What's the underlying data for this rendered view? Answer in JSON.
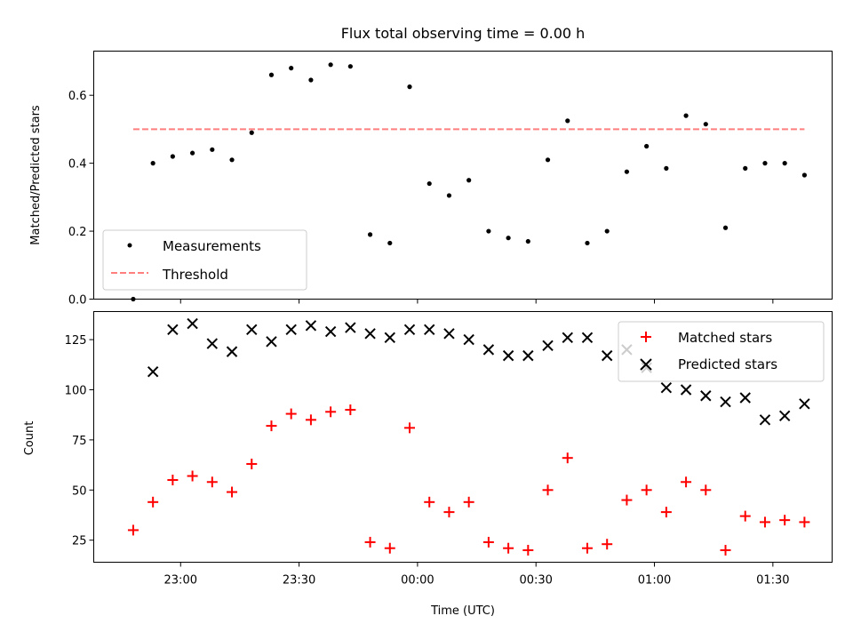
{
  "chart_data": [
    {
      "type": "scatter",
      "title": "Flux total observing time = 0.00 h",
      "ylabel": "Matched/Predicted stars",
      "ylim": [
        0,
        0.73
      ],
      "yticks": [
        0.0,
        0.2,
        0.4,
        0.6
      ],
      "ytick_labels": [
        "0.0",
        "0.2",
        "0.4",
        "0.6"
      ],
      "xlim": [
        "22:38",
        "01:45"
      ],
      "xticks": [
        "23:00",
        "23:30",
        "00:00",
        "00:30",
        "01:00",
        "01:30"
      ],
      "show_xtick_labels": false,
      "legend_position": "lower-left",
      "series": [
        {
          "name": "Measurements",
          "marker": "dot",
          "color": "#000000",
          "x": [
            "22:48",
            "22:53",
            "22:58",
            "23:03",
            "23:08",
            "23:13",
            "23:18",
            "23:23",
            "23:28",
            "23:33",
            "23:38",
            "23:43",
            "23:48",
            "23:53",
            "23:58",
            "00:03",
            "00:08",
            "00:13",
            "00:18",
            "00:23",
            "00:28",
            "00:33",
            "00:38",
            "00:43",
            "00:48",
            "00:53",
            "00:58",
            "01:03",
            "01:08",
            "01:13",
            "01:18",
            "01:23",
            "01:28",
            "01:33",
            "01:38"
          ],
          "values": [
            0.0,
            0.4,
            0.42,
            0.43,
            0.44,
            0.41,
            0.49,
            0.66,
            0.68,
            0.645,
            0.69,
            0.685,
            0.19,
            0.165,
            0.625,
            0.34,
            0.305,
            0.35,
            0.2,
            0.18,
            0.17,
            0.41,
            0.525,
            0.165,
            0.2,
            0.375,
            0.45,
            0.385,
            0.54,
            0.515,
            0.21,
            0.385,
            0.4,
            0.4,
            0.365
          ]
        },
        {
          "name": "Threshold",
          "style": "dashed",
          "color": "#ff7f7f",
          "x": [
            "22:48",
            "01:38"
          ],
          "values": [
            0.5,
            0.5
          ]
        }
      ]
    },
    {
      "type": "scatter",
      "ylabel": "Count",
      "xlabel": "Time (UTC)",
      "ylim": [
        14,
        139
      ],
      "yticks": [
        25,
        50,
        75,
        100,
        125
      ],
      "ytick_labels": [
        "25",
        "50",
        "75",
        "100",
        "125"
      ],
      "xlim": [
        "22:38",
        "01:45"
      ],
      "xticks": [
        "23:00",
        "23:30",
        "00:00",
        "00:30",
        "01:00",
        "01:30"
      ],
      "xtick_labels": [
        "23:00",
        "23:30",
        "00:00",
        "00:30",
        "01:00",
        "01:30"
      ],
      "legend_position": "top-right",
      "series": [
        {
          "name": "Matched stars",
          "marker": "+",
          "color": "#ff0000",
          "x": [
            "22:48",
            "22:53",
            "22:58",
            "23:03",
            "23:08",
            "23:13",
            "23:18",
            "23:23",
            "23:28",
            "23:33",
            "23:38",
            "23:43",
            "23:48",
            "23:53",
            "23:58",
            "00:03",
            "00:08",
            "00:13",
            "00:18",
            "00:23",
            "00:28",
            "00:33",
            "00:38",
            "00:43",
            "00:48",
            "00:53",
            "00:58",
            "01:03",
            "01:08",
            "01:13",
            "01:18",
            "01:23",
            "01:28",
            "01:33",
            "01:38"
          ],
          "values": [
            30,
            44,
            55,
            57,
            54,
            49,
            63,
            82,
            88,
            85,
            89,
            90,
            24,
            21,
            81,
            44,
            39,
            44,
            24,
            21,
            20,
            50,
            66,
            21,
            23,
            45,
            50,
            39,
            54,
            50,
            20,
            37,
            34,
            35,
            34
          ]
        },
        {
          "name": "Predicted stars",
          "marker": "x",
          "color": "#000000",
          "x": [
            "22:53",
            "22:58",
            "23:03",
            "23:08",
            "23:13",
            "23:18",
            "23:23",
            "23:28",
            "23:33",
            "23:38",
            "23:43",
            "23:48",
            "23:53",
            "23:58",
            "00:03",
            "00:08",
            "00:13",
            "00:18",
            "00:23",
            "00:28",
            "00:33",
            "00:38",
            "00:43",
            "00:48",
            "00:53",
            "00:58",
            "01:03",
            "01:08",
            "01:13",
            "01:18",
            "01:23",
            "01:28",
            "01:33",
            "01:38"
          ],
          "values": [
            109,
            130,
            133,
            123,
            119,
            130,
            124,
            130,
            132,
            129,
            131,
            128,
            126,
            130,
            130,
            128,
            125,
            120,
            117,
            117,
            122,
            126,
            126,
            117,
            120,
            111,
            101,
            100,
            97,
            94,
            96,
            85,
            87,
            93
          ]
        }
      ]
    }
  ]
}
